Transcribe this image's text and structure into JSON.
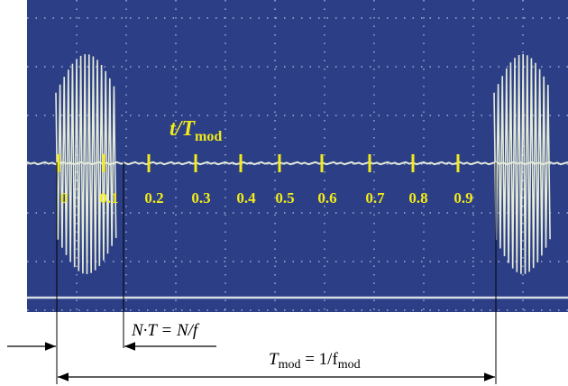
{
  "axis_title": {
    "main": "t/T",
    "sub": "mod"
  },
  "axis_labels": [
    "0",
    "0.1",
    "0.2",
    "0.3",
    "0.4",
    "0.5",
    "0.6",
    "0.7",
    "0.8",
    "0.9"
  ],
  "period_label": {
    "left": "N·T = N/f"
  },
  "mod_label": {
    "t": "T",
    "t_sub": "mod",
    "eq": " = 1/f",
    "f_sub": "mod"
  }
}
